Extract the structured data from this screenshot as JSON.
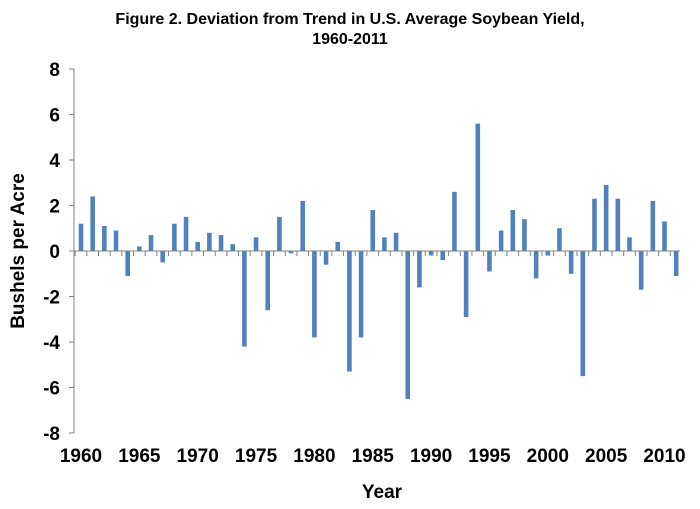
{
  "chart_data": {
    "type": "bar",
    "title_line1": "Figure 2. Deviation from Trend in U.S. Average Soybean Yield,",
    "title_line2": "1960-2011",
    "xlabel": "Year",
    "ylabel": "Bushels per Acre",
    "ylim": [
      -8,
      8
    ],
    "yticks": [
      8,
      6,
      4,
      2,
      0,
      -2,
      -4,
      -6,
      -8
    ],
    "xtick_years": [
      1960,
      1965,
      1970,
      1975,
      1980,
      1985,
      1990,
      1995,
      2000,
      2005,
      2010
    ],
    "bar_color": "#4f81bd",
    "grid": false,
    "categories": [
      1960,
      1961,
      1962,
      1963,
      1964,
      1965,
      1966,
      1967,
      1968,
      1969,
      1970,
      1971,
      1972,
      1973,
      1974,
      1975,
      1976,
      1977,
      1978,
      1979,
      1980,
      1981,
      1982,
      1983,
      1984,
      1985,
      1986,
      1987,
      1988,
      1989,
      1990,
      1991,
      1992,
      1993,
      1994,
      1995,
      1996,
      1997,
      1998,
      1999,
      2000,
      2001,
      2002,
      2003,
      2004,
      2005,
      2006,
      2007,
      2008,
      2009,
      2010,
      2011
    ],
    "values": [
      1.2,
      2.4,
      1.1,
      0.9,
      -1.1,
      0.2,
      0.7,
      -0.5,
      1.2,
      1.5,
      0.4,
      0.8,
      0.7,
      0.3,
      -4.2,
      0.6,
      -2.6,
      1.5,
      -0.1,
      2.2,
      -3.8,
      -0.6,
      0.4,
      -5.3,
      -3.8,
      1.8,
      0.6,
      0.8,
      -6.5,
      -1.6,
      -0.2,
      -0.4,
      2.6,
      -2.9,
      5.6,
      -0.9,
      0.9,
      1.8,
      1.4,
      -1.2,
      -0.2,
      1.0,
      -1.0,
      -5.5,
      2.3,
      2.9,
      2.3,
      0.6,
      -1.7,
      2.2,
      1.3,
      -1.1
    ]
  }
}
